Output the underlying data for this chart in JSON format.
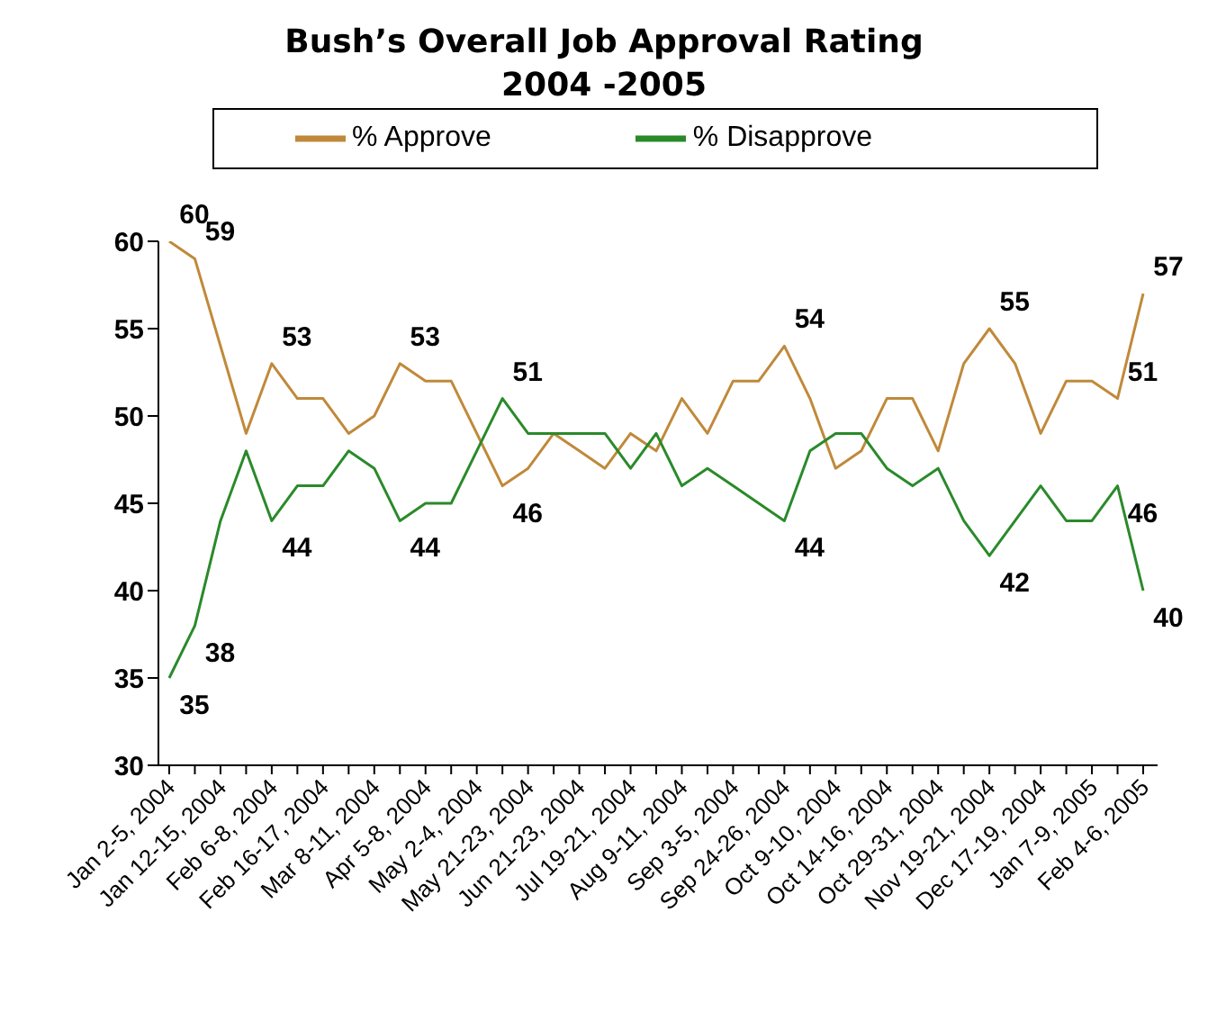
{
  "chart_data": {
    "type": "line",
    "title": "Bush’s Overall Job Approval Rating",
    "subtitle": "2004 -2005",
    "categories": [
      "Jan 2-5, 2004",
      null,
      "Jan 12-15, 2004",
      null,
      "Feb 6-8, 2004",
      null,
      "Feb 16-17, 2004",
      null,
      "Mar 8-11, 2004",
      null,
      "Apr 5-8, 2004",
      null,
      "May 2-4, 2004",
      null,
      "May 21-23, 2004",
      null,
      "Jun 21-23, 2004",
      null,
      "Jul 19-21, 2004",
      null,
      "Aug 9-11, 2004",
      null,
      "Sep 3-5, 2004",
      null,
      "Sep 24-26, 2004",
      null,
      "Oct 9-10, 2004",
      null,
      "Oct 14-16, 2004",
      null,
      "Oct 29-31, 2004",
      null,
      "Nov 19-21, 2004",
      null,
      "Dec 17-19, 2004",
      null,
      "Jan 7-9, 2005",
      null,
      "Feb 4-6, 2005"
    ],
    "series": [
      {
        "name": "% Approve",
        "color": "#c0893a",
        "values": [
          60,
          59,
          54,
          49,
          53,
          51,
          51,
          49,
          50,
          53,
          52,
          52,
          49,
          46,
          47,
          49,
          48,
          47,
          49,
          48,
          51,
          49,
          52,
          52,
          54,
          51,
          47,
          48,
          51,
          51,
          48,
          53,
          55,
          53,
          49,
          52,
          52,
          51,
          57
        ],
        "value_labels": [
          "60",
          "59",
          null,
          null,
          "53",
          null,
          null,
          null,
          null,
          "53",
          null,
          null,
          null,
          "46",
          null,
          null,
          null,
          null,
          null,
          null,
          null,
          null,
          null,
          null,
          "54",
          null,
          null,
          null,
          null,
          null,
          null,
          null,
          "55",
          null,
          null,
          null,
          null,
          "51",
          "57"
        ]
      },
      {
        "name": "% Disapprove",
        "color": "#2a8a2a",
        "values": [
          35,
          38,
          44,
          48,
          44,
          46,
          46,
          48,
          47,
          44,
          45,
          45,
          48,
          51,
          49,
          49,
          49,
          49,
          47,
          49,
          46,
          47,
          46,
          45,
          44,
          48,
          49,
          49,
          47,
          46,
          47,
          44,
          42,
          44,
          46,
          44,
          44,
          46,
          40
        ],
        "value_labels": [
          "35",
          "38",
          null,
          null,
          "44",
          null,
          null,
          null,
          null,
          "44",
          null,
          null,
          null,
          "51",
          null,
          null,
          null,
          null,
          null,
          null,
          null,
          null,
          null,
          null,
          "44",
          null,
          null,
          null,
          null,
          null,
          null,
          null,
          "42",
          null,
          null,
          null,
          null,
          "46",
          "40"
        ]
      }
    ],
    "ylim": [
      30,
      60
    ],
    "yticks": [
      30,
      35,
      40,
      45,
      50,
      55,
      60
    ],
    "grid": false,
    "legend": "top",
    "marker": "none",
    "line_style": "solid"
  }
}
